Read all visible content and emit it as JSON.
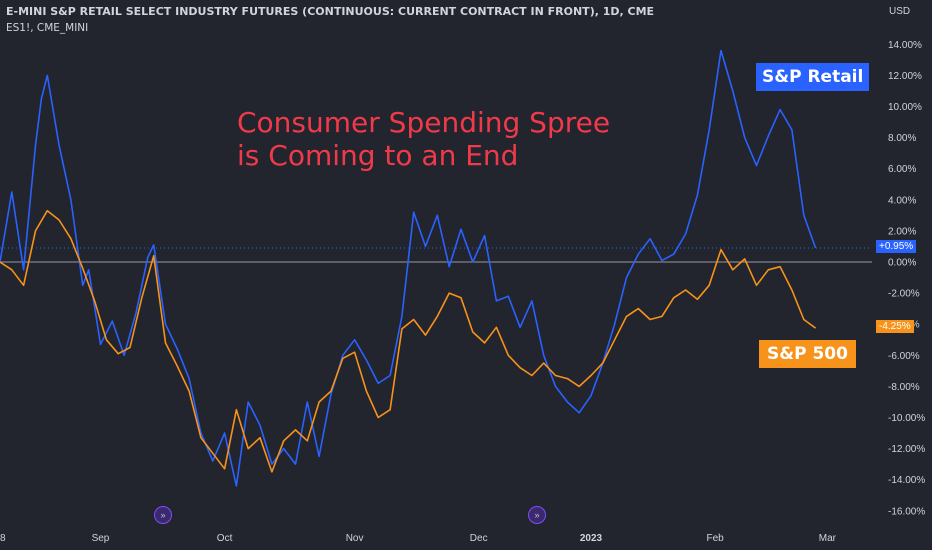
{
  "header": {
    "title": "E-MINI S&P RETAIL SELECT INDUSTRY FUTURES (CONTINUOUS: CURRENT CONTRACT IN FRONT), 1D, CME",
    "symbol": "ES1!, CME_MINI",
    "currency": "USD"
  },
  "annotation": {
    "line1": "Consumer Spending Spree",
    "line2": "is Coming to an End"
  },
  "labels": {
    "retail": "S&P Retail",
    "sp500": "S&P 500",
    "retail_last": "+0.95%",
    "sp500_last": "-4.25%"
  },
  "colors": {
    "retail": "#2962ff",
    "sp500": "#f7931a",
    "headline": "#f03a4a",
    "background": "#22242e"
  },
  "icons": [
    "events-icon",
    "events-icon"
  ],
  "chart_data": {
    "type": "line",
    "ylabel": "USD",
    "ylim": [
      -16,
      14
    ],
    "yticks": [
      14,
      12,
      10,
      8,
      6,
      4,
      2,
      0,
      -2,
      -4,
      -6,
      -8,
      -10,
      -12,
      -14,
      -16
    ],
    "ytick_labels": [
      "14.00%",
      "12.00%",
      "10.00%",
      "8.00%",
      "6.00%",
      "4.00%",
      "2.00%",
      "0.00%",
      "-2.00%",
      "-4.00%",
      "-6.00%",
      "-8.00%",
      "-10.00%",
      "-12.00%",
      "-14.00%",
      "-16.00%"
    ],
    "xticks": [
      {
        "label": "8",
        "index": 0
      },
      {
        "label": "Sep",
        "index": 17
      },
      {
        "label": "Oct",
        "index": 38
      },
      {
        "label": "Nov",
        "index": 60
      },
      {
        "label": "Dec",
        "index": 81
      },
      {
        "label": "2023",
        "index": 100
      },
      {
        "label": "Feb",
        "index": 121
      },
      {
        "label": "Mar",
        "index": 140
      }
    ],
    "x_count": 141,
    "series": [
      {
        "name": "S&P Retail",
        "color": "#2962ff",
        "last_index": 138,
        "points": [
          [
            0,
            0
          ],
          [
            2,
            4.5
          ],
          [
            4,
            -0.5
          ],
          [
            6,
            7.5
          ],
          [
            7,
            10.5
          ],
          [
            8,
            12
          ],
          [
            10,
            7.5
          ],
          [
            12,
            4
          ],
          [
            14,
            -1.5
          ],
          [
            15,
            -0.5
          ],
          [
            17,
            -5.3
          ],
          [
            19,
            -3.8
          ],
          [
            21,
            -6
          ],
          [
            23,
            -3.3
          ],
          [
            25,
            0.3
          ],
          [
            26,
            1.1
          ],
          [
            28,
            -4
          ],
          [
            30,
            -5.6
          ],
          [
            32,
            -7.5
          ],
          [
            34,
            -11
          ],
          [
            36,
            -12.8
          ],
          [
            38,
            -11
          ],
          [
            40,
            -14.4
          ],
          [
            42,
            -9
          ],
          [
            44,
            -10.5
          ],
          [
            46,
            -13
          ],
          [
            48,
            -12
          ],
          [
            50,
            -13
          ],
          [
            52,
            -9
          ],
          [
            54,
            -12.5
          ],
          [
            56,
            -8.5
          ],
          [
            58,
            -6
          ],
          [
            60,
            -5
          ],
          [
            62,
            -6.3
          ],
          [
            64,
            -7.8
          ],
          [
            66,
            -7.3
          ],
          [
            68,
            -3.5
          ],
          [
            70,
            3.2
          ],
          [
            72,
            1
          ],
          [
            74,
            3
          ],
          [
            76,
            -0.3
          ],
          [
            78,
            2.1
          ],
          [
            80,
            0
          ],
          [
            82,
            1.7
          ],
          [
            84,
            -2.5
          ],
          [
            86,
            -2.2
          ],
          [
            88,
            -4.2
          ],
          [
            90,
            -2.5
          ],
          [
            92,
            -6
          ],
          [
            94,
            -8
          ],
          [
            96,
            -9
          ],
          [
            98,
            -9.7
          ],
          [
            100,
            -8.6
          ],
          [
            102,
            -6.5
          ],
          [
            104,
            -4
          ],
          [
            106,
            -1
          ],
          [
            108,
            0.5
          ],
          [
            110,
            1.5
          ],
          [
            112,
            0.1
          ],
          [
            114,
            0.5
          ],
          [
            116,
            1.8
          ],
          [
            118,
            4.3
          ],
          [
            120,
            8.5
          ],
          [
            122,
            13.6
          ],
          [
            124,
            11
          ],
          [
            126,
            8
          ],
          [
            128,
            6.2
          ],
          [
            130,
            8.1
          ],
          [
            132,
            9.8
          ],
          [
            134,
            8.5
          ],
          [
            136,
            3
          ],
          [
            138,
            0.9
          ]
        ]
      },
      {
        "name": "S&P 500",
        "color": "#f7931a",
        "last_index": 138,
        "points": [
          [
            0,
            0
          ],
          [
            2,
            -0.5
          ],
          [
            4,
            -1.5
          ],
          [
            6,
            2
          ],
          [
            8,
            3.3
          ],
          [
            10,
            2.7
          ],
          [
            12,
            1.5
          ],
          [
            14,
            -0.4
          ],
          [
            16,
            -2.5
          ],
          [
            18,
            -5
          ],
          [
            20,
            -5.9
          ],
          [
            22,
            -5.5
          ],
          [
            24,
            -2.3
          ],
          [
            26,
            0.4
          ],
          [
            28,
            -5.2
          ],
          [
            30,
            -6.7
          ],
          [
            32,
            -8.3
          ],
          [
            34,
            -11.3
          ],
          [
            36,
            -12.3
          ],
          [
            38,
            -13.3
          ],
          [
            40,
            -9.5
          ],
          [
            42,
            -12
          ],
          [
            44,
            -11.3
          ],
          [
            46,
            -13.5
          ],
          [
            48,
            -11.5
          ],
          [
            50,
            -10.8
          ],
          [
            52,
            -11.5
          ],
          [
            54,
            -9
          ],
          [
            56,
            -8.3
          ],
          [
            58,
            -6.2
          ],
          [
            60,
            -5.8
          ],
          [
            62,
            -8.3
          ],
          [
            64,
            -10
          ],
          [
            66,
            -9.5
          ],
          [
            68,
            -4.3
          ],
          [
            70,
            -3.7
          ],
          [
            72,
            -4.7
          ],
          [
            74,
            -3.5
          ],
          [
            76,
            -2
          ],
          [
            78,
            -2.3
          ],
          [
            80,
            -4.5
          ],
          [
            82,
            -5.2
          ],
          [
            84,
            -4.2
          ],
          [
            86,
            -6
          ],
          [
            88,
            -6.8
          ],
          [
            90,
            -7.3
          ],
          [
            92,
            -6.5
          ],
          [
            94,
            -7.3
          ],
          [
            96,
            -7.5
          ],
          [
            98,
            -8
          ],
          [
            100,
            -7.3
          ],
          [
            102,
            -6.5
          ],
          [
            104,
            -5
          ],
          [
            106,
            -3.5
          ],
          [
            108,
            -3
          ],
          [
            110,
            -3.7
          ],
          [
            112,
            -3.5
          ],
          [
            114,
            -2.3
          ],
          [
            116,
            -1.8
          ],
          [
            118,
            -2.4
          ],
          [
            120,
            -1.5
          ],
          [
            122,
            0.8
          ],
          [
            124,
            -0.5
          ],
          [
            126,
            0.2
          ],
          [
            128,
            -1.5
          ],
          [
            130,
            -0.5
          ],
          [
            132,
            -0.3
          ],
          [
            134,
            -1.8
          ],
          [
            136,
            -3.7
          ],
          [
            138,
            -4.25
          ]
        ]
      }
    ]
  }
}
